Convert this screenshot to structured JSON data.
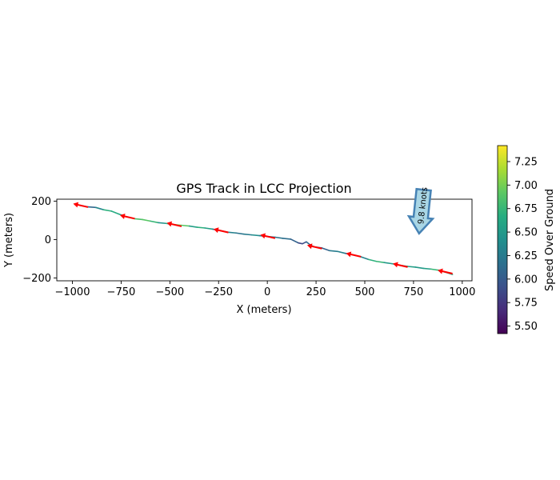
{
  "chart_data": {
    "type": "line",
    "title": "GPS Track in LCC Projection",
    "xlabel": "X (meters)",
    "ylabel": "Y (meters)",
    "xlim": [
      -1080,
      1050
    ],
    "ylim": [
      -215,
      210
    ],
    "x_ticks": [
      -1000,
      -750,
      -500,
      -250,
      0,
      250,
      500,
      750,
      1000
    ],
    "x_tick_labels": [
      "−1000",
      "−750",
      "−500",
      "−250",
      "0",
      "250",
      "500",
      "750",
      "1000"
    ],
    "y_ticks": [
      -200,
      0,
      200
    ],
    "y_tick_labels": [
      "−200",
      "0",
      "200"
    ],
    "colormap": "viridis",
    "colorbar": {
      "label": "Speed Over Ground",
      "vmin": 5.42,
      "vmax": 7.42,
      "ticks": [
        5.5,
        5.75,
        6.0,
        6.25,
        6.5,
        6.75,
        7.0,
        7.25
      ],
      "tick_labels": [
        "5.50",
        "5.75",
        "6.00",
        "6.25",
        "6.50",
        "6.75",
        "7.00",
        "7.25"
      ]
    },
    "track": {
      "x": [
        -960,
        -920,
        -880,
        -840,
        -800,
        -760,
        -720,
        -680,
        -640,
        -600,
        -560,
        -520,
        -480,
        -440,
        -400,
        -360,
        -320,
        -280,
        -240,
        -200,
        -160,
        -120,
        -80,
        -40,
        0,
        40,
        80,
        120,
        160,
        180,
        200,
        220,
        240,
        280,
        320,
        360,
        400,
        440,
        480,
        520,
        560,
        600,
        640,
        680,
        720,
        760,
        800,
        840,
        880,
        920,
        950
      ],
      "y": [
        178,
        170,
        167,
        155,
        148,
        132,
        118,
        108,
        104,
        96,
        88,
        84,
        78,
        74,
        70,
        64,
        60,
        54,
        46,
        38,
        34,
        28,
        24,
        20,
        16,
        12,
        6,
        2,
        -18,
        -22,
        -12,
        -28,
        -38,
        -44,
        -58,
        -62,
        -72,
        -80,
        -90,
        -104,
        -114,
        -120,
        -126,
        -134,
        -140,
        -144,
        -150,
        -154,
        -160,
        -172,
        -182
      ],
      "speed": [
        6.1,
        6.0,
        6.2,
        6.5,
        6.9,
        6.4,
        6.8,
        7.1,
        6.6,
        7.2,
        6.3,
        6.6,
        6.7,
        7.3,
        6.5,
        6.6,
        6.8,
        6.3,
        6.1,
        6.2,
        6.4,
        6.0,
        6.5,
        6.3,
        6.2,
        6.3,
        6.1,
        6.2,
        5.9,
        5.8,
        6.0,
        6.2,
        6.3,
        6.0,
        6.1,
        6.4,
        6.2,
        6.0,
        6.1,
        6.5,
        6.9,
        6.6,
        6.4,
        6.7,
        6.5,
        6.6,
        6.4,
        6.7,
        6.8,
        6.3,
        6.9
      ]
    },
    "heading_arrows": [
      {
        "x": -960,
        "y": 178
      },
      {
        "x": -720,
        "y": 118
      },
      {
        "x": -480,
        "y": 78
      },
      {
        "x": -240,
        "y": 46
      },
      {
        "x": 0,
        "y": 16
      },
      {
        "x": 240,
        "y": -38
      },
      {
        "x": 440,
        "y": -80
      },
      {
        "x": 680,
        "y": -134
      },
      {
        "x": 910,
        "y": -168
      }
    ],
    "annotation": {
      "text": "9.8 knots",
      "x": 790,
      "y": 95,
      "direction": "down",
      "fill_color": "#a9d6e5",
      "edge_color": "#4682b4"
    },
    "heading_arrow_color": "#ff0000"
  }
}
